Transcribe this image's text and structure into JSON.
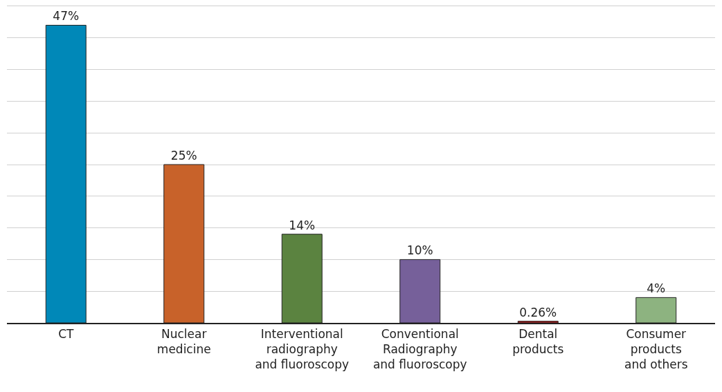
{
  "chart_data": {
    "type": "bar",
    "categories": [
      "CT",
      "Nuclear\nmedicine",
      "Interventional\nradiography\nand fluoroscopy",
      "Conventional\nRadiography\nand fluoroscopy",
      "Dental\nproducts",
      "Consumer\nproducts\nand others"
    ],
    "values": [
      47,
      25,
      14,
      10,
      0.26,
      4
    ],
    "colors": [
      "#0088b8",
      "#c8622a",
      "#5b8340",
      "#76609a",
      "#b22222",
      "#8db380"
    ],
    "value_labels": [
      "47%",
      "25%",
      "14%",
      "10%",
      "0.26%",
      "4%"
    ],
    "ylim": [
      0,
      50
    ],
    "yticks": [
      {
        "value": 0,
        "label": null
      },
      {
        "value": 5,
        "label": null
      },
      {
        "value": 10,
        "label": null
      },
      {
        "value": 15,
        "label": null
      },
      {
        "value": 20,
        "label": null
      },
      {
        "value": 25,
        "label": null
      },
      {
        "value": 30,
        "label": null
      },
      {
        "value": 35,
        "label": null
      },
      {
        "value": 40,
        "label": null
      },
      {
        "value": 45,
        "label": null
      },
      {
        "value": 50,
        "label": null
      }
    ],
    "grid": "y",
    "legend": false,
    "tick_labels": "x"
  }
}
